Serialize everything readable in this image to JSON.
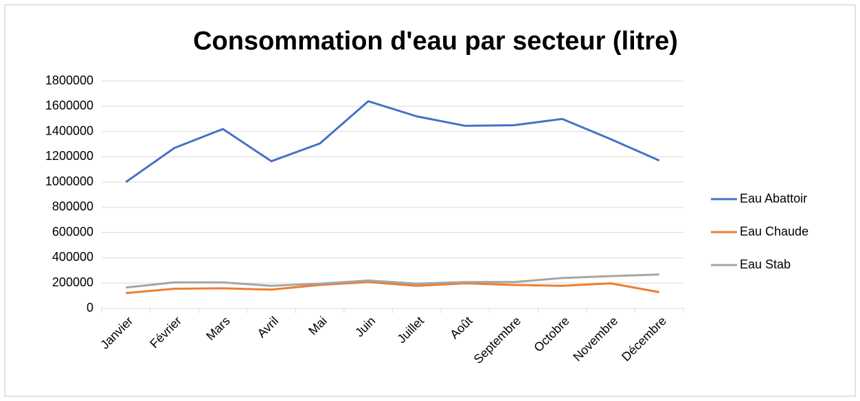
{
  "chart_data": {
    "type": "line",
    "title": "Consommation d'eau par secteur (litre)",
    "categories": [
      "Janvier",
      "Février",
      "Mars",
      "Avril",
      "Mai",
      "Juin",
      "Juillet",
      "Août",
      "Septembre",
      "Octobre",
      "Novembre",
      "Décembre"
    ],
    "series": [
      {
        "name": "Eau Abattoir",
        "color": "#4472c4",
        "values": [
          1000000,
          1270000,
          1420000,
          1165000,
          1305000,
          1640000,
          1520000,
          1445000,
          1450000,
          1500000,
          1340000,
          1170000
        ]
      },
      {
        "name": "Eau Chaude",
        "color": "#ed7d31",
        "values": [
          120000,
          155000,
          158000,
          148000,
          185000,
          208000,
          178000,
          198000,
          185000,
          178000,
          198000,
          128000
        ]
      },
      {
        "name": "Eau Stab",
        "color": "#a5a5a5",
        "values": [
          165000,
          205000,
          205000,
          178000,
          195000,
          220000,
          195000,
          208000,
          208000,
          240000,
          255000,
          268000
        ]
      }
    ],
    "ylim": [
      0,
      1800000
    ],
    "yticks": [
      0,
      200000,
      400000,
      600000,
      800000,
      1000000,
      1200000,
      1400000,
      1600000,
      1800000
    ],
    "grid": true,
    "legend": "right"
  }
}
